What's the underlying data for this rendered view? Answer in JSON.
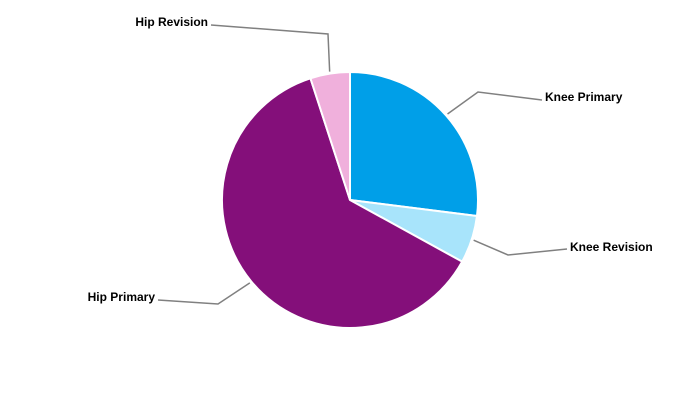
{
  "chart_data": {
    "type": "pie",
    "categories": [
      "Knee Primary",
      "Knee Revision",
      "Hip Primary",
      "Hip Revision"
    ],
    "values": [
      27,
      6,
      62,
      5
    ],
    "colors": [
      "#009fe8",
      "#a8e4fb",
      "#840f7a",
      "#f0b0dc"
    ]
  }
}
